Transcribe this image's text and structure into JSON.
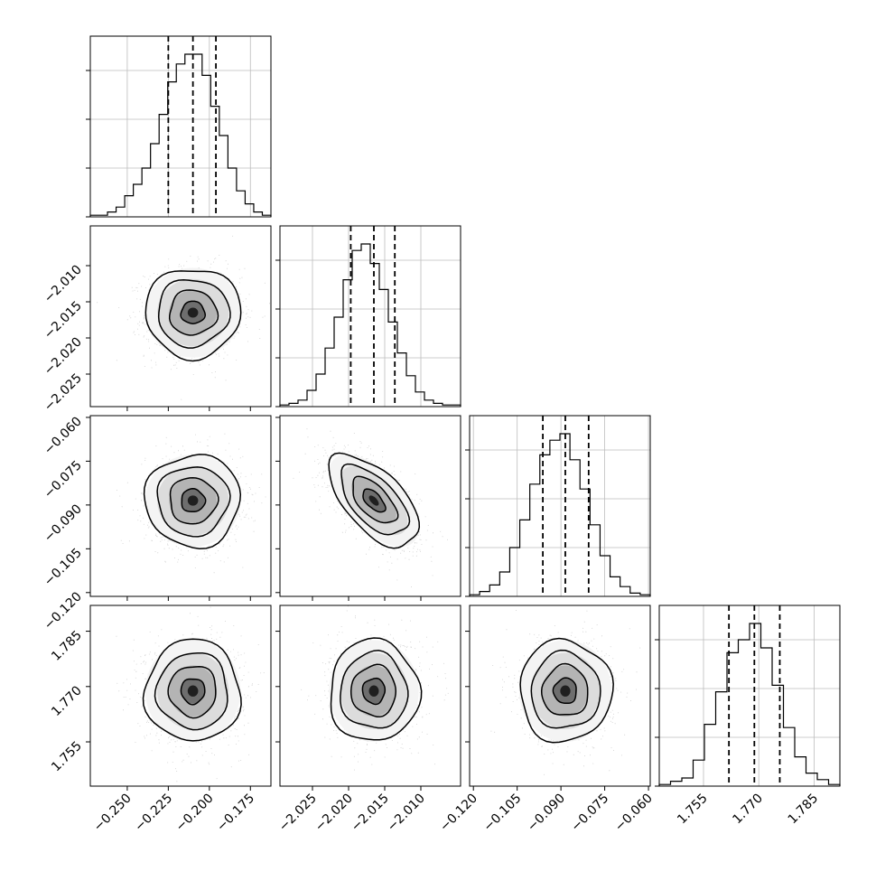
{
  "chart_data": {
    "type": "corner",
    "parameters": [
      {
        "range": [
          -0.2725,
          -0.1625
        ],
        "ticks": [
          -0.25,
          -0.225,
          -0.2,
          -0.175
        ],
        "tick_labels": [
          "−0.250",
          "−0.225",
          "−0.200",
          "−0.175"
        ],
        "median": -0.21,
        "lower": -0.225,
        "upper": -0.196,
        "sigma": 0.0145
      },
      {
        "range": [
          -2.0295,
          -2.0045
        ],
        "ticks": [
          -2.025,
          -2.02,
          -2.015,
          -2.01
        ],
        "tick_labels": [
          "−2.025",
          "−2.020",
          "−2.015",
          "−2.010"
        ],
        "median": -2.0165,
        "lower": -2.0197,
        "upper": -2.0136,
        "sigma": 0.0031
      },
      {
        "range": [
          -0.1213,
          -0.0594
        ],
        "ticks": [
          -0.12,
          -0.105,
          -0.09,
          -0.075,
          -0.06
        ],
        "tick_labels": [
          "−0.120",
          "−0.105",
          "−0.090",
          "−0.075",
          "−0.060"
        ],
        "median": -0.0885,
        "lower": -0.0962,
        "upper": -0.0805,
        "sigma": 0.0079
      },
      {
        "range": [
          1.743,
          1.792
        ],
        "ticks": [
          1.755,
          1.77,
          1.785
        ],
        "tick_labels": [
          "1.755",
          "1.770",
          "1.785"
        ],
        "median": 1.7688,
        "lower": 1.7619,
        "upper": 1.7757,
        "sigma": 0.0069
      }
    ],
    "histograms": [
      {
        "param": 0,
        "counts": [
          0.01,
          0.01,
          0.03,
          0.06,
          0.13,
          0.2,
          0.3,
          0.45,
          0.63,
          0.83,
          0.94,
          1.0,
          1.0,
          0.87,
          0.68,
          0.5,
          0.3,
          0.16,
          0.08,
          0.03,
          0.01
        ]
      },
      {
        "param": 1,
        "counts": [
          0.01,
          0.02,
          0.04,
          0.1,
          0.2,
          0.36,
          0.55,
          0.78,
          0.96,
          1.0,
          0.88,
          0.72,
          0.52,
          0.33,
          0.19,
          0.09,
          0.04,
          0.02,
          0.01,
          0.01
        ]
      },
      {
        "param": 2,
        "counts": [
          0.01,
          0.03,
          0.07,
          0.15,
          0.3,
          0.47,
          0.69,
          0.87,
          0.96,
          1.0,
          0.84,
          0.66,
          0.44,
          0.25,
          0.12,
          0.06,
          0.02,
          0.01
        ]
      },
      {
        "param": 3,
        "counts": [
          0.01,
          0.03,
          0.05,
          0.16,
          0.38,
          0.58,
          0.82,
          0.9,
          1.0,
          0.85,
          0.62,
          0.36,
          0.18,
          0.08,
          0.04,
          0.01
        ]
      }
    ],
    "scatter_panels": [
      {
        "x_param": 0,
        "y_param": 1,
        "correlation": 0.0
      },
      {
        "x_param": 0,
        "y_param": 2,
        "correlation": 0.0
      },
      {
        "x_param": 1,
        "y_param": 2,
        "correlation": -0.6
      },
      {
        "x_param": 0,
        "y_param": 3,
        "correlation": 0.0
      },
      {
        "x_param": 1,
        "y_param": 3,
        "correlation": 0.0
      },
      {
        "x_param": 2,
        "y_param": 3,
        "correlation": 0.0
      }
    ],
    "contour_levels_sigma": [
      0.5,
      1.0,
      1.5,
      2.0
    ],
    "grid": true,
    "quantile_line_style": "dashed"
  }
}
